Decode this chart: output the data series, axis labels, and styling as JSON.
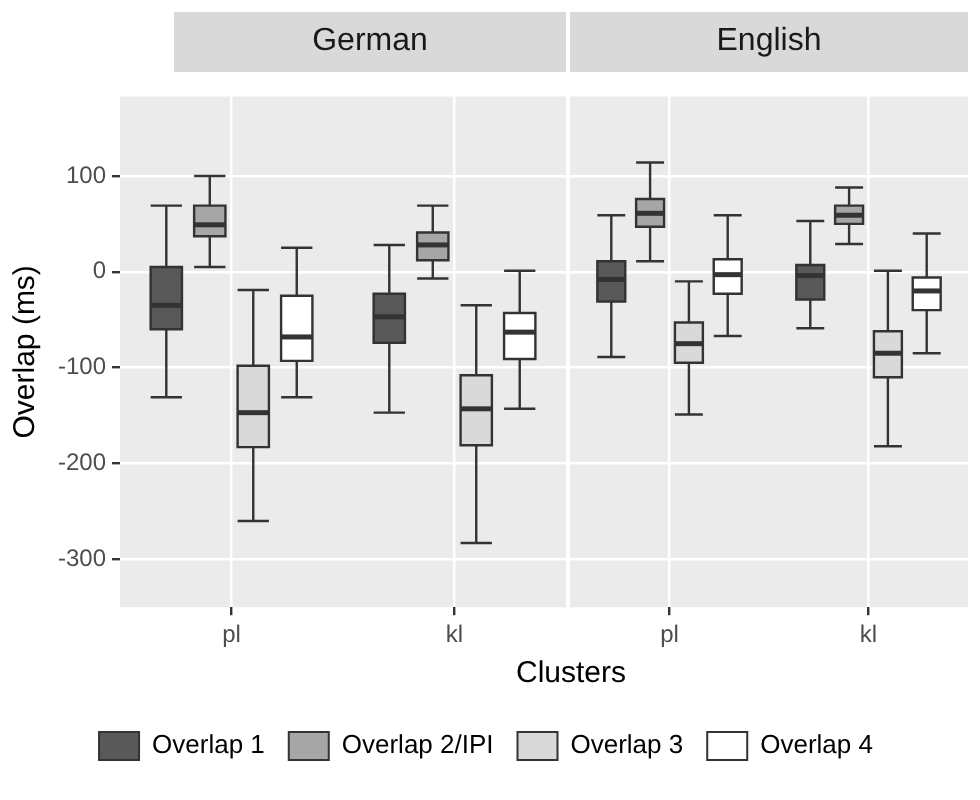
{
  "chart_data": [
    {
      "type": "box",
      "title": "German",
      "ylabel": "Overlap (ms)",
      "xlabel": "Clusters",
      "categories": [
        "pl",
        "kl"
      ],
      "ylim": [
        -350,
        183
      ],
      "yticks": [
        -300,
        -200,
        -100,
        0,
        100
      ],
      "grid": true,
      "legend": "bottom",
      "series": [
        {
          "name": "Overlap 1",
          "color": "#595959",
          "boxes": [
            {
              "low": -131,
              "q1": -60,
              "median": -35,
              "q3": 5,
              "high": 69
            },
            {
              "low": -147,
              "q1": -74,
              "median": -47,
              "q3": -23,
              "high": 28
            }
          ]
        },
        {
          "name": "Overlap 2/IPI",
          "color": "#a6a6a6",
          "boxes": [
            {
              "low": 5,
              "q1": 37,
              "median": 49,
              "q3": 69,
              "high": 100
            },
            {
              "low": -7,
              "q1": 12,
              "median": 28,
              "q3": 41,
              "high": 69
            }
          ]
        },
        {
          "name": "Overlap 3",
          "color": "#d9d9d9",
          "boxes": [
            {
              "low": -260,
              "q1": -183,
              "median": -147,
              "q3": -98,
              "high": -19
            },
            {
              "low": -283,
              "q1": -181,
              "median": -143,
              "q3": -108,
              "high": -35
            }
          ]
        },
        {
          "name": "Overlap 4",
          "color": "#ffffff",
          "boxes": [
            {
              "low": -131,
              "q1": -93,
              "median": -68,
              "q3": -25,
              "high": 25
            },
            {
              "low": -143,
              "q1": -91,
              "median": -63,
              "q3": -43,
              "high": 1
            }
          ]
        }
      ]
    },
    {
      "type": "box",
      "title": "English",
      "categories": [
        "pl",
        "kl"
      ],
      "ylim": [
        -350,
        183
      ],
      "yticks": [
        -300,
        -200,
        -100,
        0,
        100
      ],
      "grid": true,
      "tick_labels": "x",
      "series": [
        {
          "color": "#595959",
          "boxes": [
            {
              "low": -89,
              "q1": -31,
              "median": -8,
              "q3": 11,
              "high": 59
            },
            {
              "low": -59,
              "q1": -29,
              "median": -4,
              "q3": 7,
              "high": 53
            }
          ]
        },
        {
          "color": "#a6a6a6",
          "boxes": [
            {
              "low": 11,
              "q1": 47,
              "median": 61,
              "q3": 76,
              "high": 114
            },
            {
              "low": 29,
              "q1": 50,
              "median": 59,
              "q3": 69,
              "high": 88
            }
          ]
        },
        {
          "color": "#d9d9d9",
          "boxes": [
            {
              "low": -149,
              "q1": -95,
              "median": -75,
              "q3": -53,
              "high": -10
            },
            {
              "low": -182,
              "q1": -110,
              "median": -85,
              "q3": -62,
              "high": 1
            }
          ]
        },
        {
          "color": "#ffffff",
          "boxes": [
            {
              "low": -67,
              "q1": -23,
              "median": -3,
              "q3": 13,
              "high": 59
            },
            {
              "low": -85,
              "q1": -40,
              "median": -20,
              "q3": -6,
              "high": 40
            }
          ]
        }
      ]
    }
  ]
}
